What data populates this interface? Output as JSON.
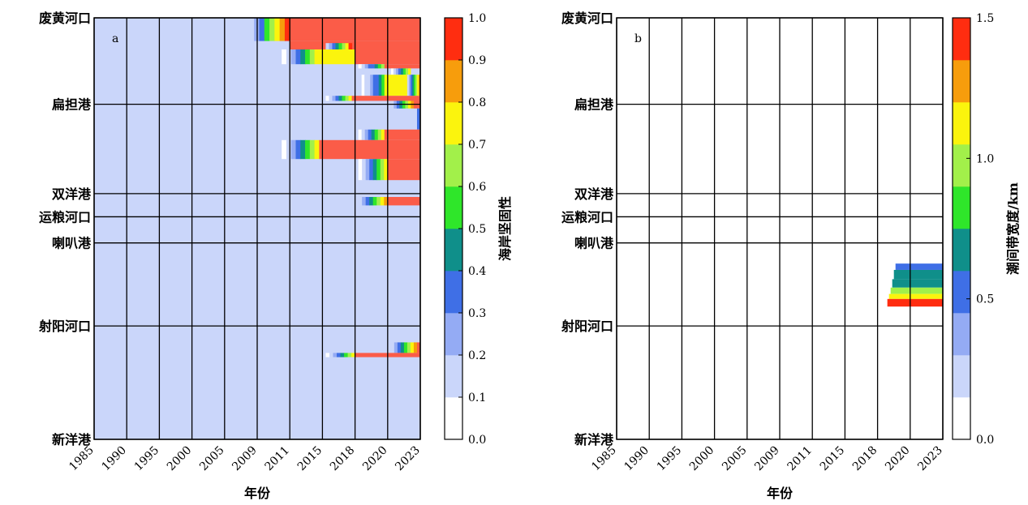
{
  "chart_data": [
    {
      "type": "heatmap",
      "panel_label": "a",
      "xlabel": "年份",
      "colorbar_label": "海岸坚固性",
      "colorbar_range": [
        0.0,
        1.0
      ],
      "colorbar_ticks": [
        "0.0",
        "0.1",
        "0.2",
        "0.3",
        "0.4",
        "0.5",
        "0.6",
        "0.7",
        "0.8",
        "0.9",
        "1.0"
      ],
      "x_ticks": [
        "1985",
        "1990",
        "1995",
        "2000",
        "2005",
        "2009",
        "2011",
        "2015",
        "2018",
        "2020",
        "2023"
      ],
      "y_ticks": [
        {
          "label": "废黄河口",
          "pos": 0.0
        },
        {
          "label": "扁担港",
          "pos": 0.205
        },
        {
          "label": "双洋港",
          "pos": 0.417
        },
        {
          "label": "运粮河口",
          "pos": 0.472
        },
        {
          "label": "喇叭港",
          "pos": 0.534
        },
        {
          "label": "射阳河口",
          "pos": 0.731
        },
        {
          "label": "新洋港",
          "pos": 1.0
        }
      ],
      "background_value": 0.15,
      "bands": [
        {
          "y0": 0.0,
          "y1": 0.055,
          "x0": 4.75,
          "x1": 6.0,
          "ramp_to": 1.0
        },
        {
          "y0": 0.0,
          "y1": 0.055,
          "x0": 6.0,
          "x1": 10.0,
          "value": 0.95
        },
        {
          "y0": 0.055,
          "y1": 0.075,
          "x0": 6.0,
          "x1": 10.0,
          "value": 0.95
        },
        {
          "y0": 0.06,
          "y1": 0.075,
          "x0": 7.1,
          "x1": 7.9,
          "ramp_to": 0.9
        },
        {
          "y0": 0.075,
          "y1": 0.11,
          "x0": 5.75,
          "x1": 6.9,
          "ramp_to": 0.7
        },
        {
          "y0": 0.075,
          "y1": 0.11,
          "x0": 6.9,
          "x1": 8.0,
          "value": 0.7
        },
        {
          "y0": 0.075,
          "y1": 0.11,
          "x0": 8.0,
          "x1": 10.0,
          "value": 0.95
        },
        {
          "y0": 0.11,
          "y1": 0.12,
          "x0": 8.1,
          "x1": 8.9,
          "ramp_to": 0.6
        },
        {
          "y0": 0.11,
          "y1": 0.12,
          "x0": 8.9,
          "x1": 10.0,
          "value": 0.95
        },
        {
          "y0": 0.12,
          "y1": 0.135,
          "x0": 9.1,
          "x1": 9.7,
          "ramp_to": 0.7
        },
        {
          "y0": 0.135,
          "y1": 0.185,
          "x0": 8.2,
          "x1": 8.9,
          "ramp_to": 0.5
        },
        {
          "y0": 0.135,
          "y1": 0.185,
          "x0": 8.9,
          "x1": 9.6,
          "value": 0.7
        },
        {
          "y0": 0.135,
          "y1": 0.185,
          "x0": 9.6,
          "x1": 10.0,
          "ramp_to": 0.85
        },
        {
          "y0": 0.185,
          "y1": 0.197,
          "x0": 7.1,
          "x1": 7.9,
          "ramp_to": 0.7
        },
        {
          "y0": 0.185,
          "y1": 0.197,
          "x0": 7.9,
          "x1": 10.0,
          "value": 0.95
        },
        {
          "y0": 0.197,
          "y1": 0.215,
          "x0": 9.1,
          "x1": 9.8,
          "ramp_to": 0.8
        },
        {
          "y0": 0.197,
          "y1": 0.215,
          "x0": 9.8,
          "x1": 10.0,
          "value": 0.98
        },
        {
          "y0": 0.215,
          "y1": 0.265,
          "x0": 9.9,
          "x1": 10.0,
          "value": 0.3
        },
        {
          "y0": 0.265,
          "y1": 0.29,
          "x0": 8.1,
          "x1": 8.9,
          "ramp_to": 0.7
        },
        {
          "y0": 0.265,
          "y1": 0.29,
          "x0": 8.9,
          "x1": 10.0,
          "value": 0.95
        },
        {
          "y0": 0.29,
          "y1": 0.335,
          "x0": 5.75,
          "x1": 6.9,
          "ramp_to": 0.7
        },
        {
          "y0": 0.29,
          "y1": 0.335,
          "x0": 6.9,
          "x1": 8.0,
          "value": 0.95
        },
        {
          "y0": 0.29,
          "y1": 0.335,
          "x0": 8.0,
          "x1": 9.0,
          "value": 0.99
        },
        {
          "y0": 0.29,
          "y1": 0.335,
          "x0": 9.0,
          "x1": 10.0,
          "value": 0.95
        },
        {
          "y0": 0.335,
          "y1": 0.385,
          "x0": 8.1,
          "x1": 9.0,
          "ramp_to": 0.7
        },
        {
          "y0": 0.335,
          "y1": 0.385,
          "x0": 9.0,
          "x1": 10.0,
          "value": 0.95
        },
        {
          "y0": 0.425,
          "y1": 0.445,
          "x0": 8.1,
          "x1": 9.0,
          "ramp_to": 0.8
        },
        {
          "y0": 0.425,
          "y1": 0.445,
          "x0": 9.0,
          "x1": 10.0,
          "value": 0.95
        },
        {
          "y0": 0.77,
          "y1": 0.795,
          "x0": 9.1,
          "x1": 9.9,
          "ramp_to": 0.8
        },
        {
          "y0": 0.77,
          "y1": 0.795,
          "x0": 9.9,
          "x1": 10.0,
          "value": 0.99
        },
        {
          "y0": 0.795,
          "y1": 0.805,
          "x0": 7.1,
          "x1": 8.0,
          "ramp_to": 0.7
        },
        {
          "y0": 0.795,
          "y1": 0.805,
          "x0": 8.0,
          "x1": 10.0,
          "value": 0.95
        }
      ]
    },
    {
      "type": "heatmap",
      "panel_label": "b",
      "xlabel": "年份",
      "colorbar_label": "潮间带宽度/km",
      "colorbar_range": [
        0.0,
        1.5
      ],
      "colorbar_ticks": [
        "0.0",
        "0.5",
        "1.0",
        "1.5"
      ],
      "x_ticks": [
        "1985",
        "1990",
        "1995",
        "2000",
        "2005",
        "2009",
        "2011",
        "2015",
        "2018",
        "2020",
        "2023"
      ],
      "y_ticks": [
        {
          "label": "废黄河口",
          "pos": 0.0
        },
        {
          "label": "扁担港",
          "pos": 0.205
        },
        {
          "label": "双洋港",
          "pos": 0.417
        },
        {
          "label": "运粮河口",
          "pos": 0.472
        },
        {
          "label": "喇叭港",
          "pos": 0.534
        },
        {
          "label": "射阳河口",
          "pos": 0.731
        },
        {
          "label": "新洋港",
          "pos": 1.0
        }
      ],
      "background_value": 0.0,
      "bands": [
        {
          "y0": 0.583,
          "y1": 0.598,
          "x0": 8.55,
          "x1": 10.0,
          "value": 0.6
        },
        {
          "y0": 0.598,
          "y1": 0.62,
          "x0": 8.5,
          "x1": 10.0,
          "value": 0.65
        },
        {
          "y0": 0.62,
          "y1": 0.64,
          "x0": 8.45,
          "x1": 10.0,
          "value": 0.7
        },
        {
          "y0": 0.64,
          "y1": 0.655,
          "x0": 8.4,
          "x1": 10.0,
          "value": 0.9
        },
        {
          "y0": 0.655,
          "y1": 0.667,
          "x0": 8.35,
          "x1": 10.0,
          "value": 1.2
        },
        {
          "y0": 0.667,
          "y1": 0.685,
          "x0": 8.3,
          "x1": 10.0,
          "value": 1.45
        }
      ]
    }
  ]
}
